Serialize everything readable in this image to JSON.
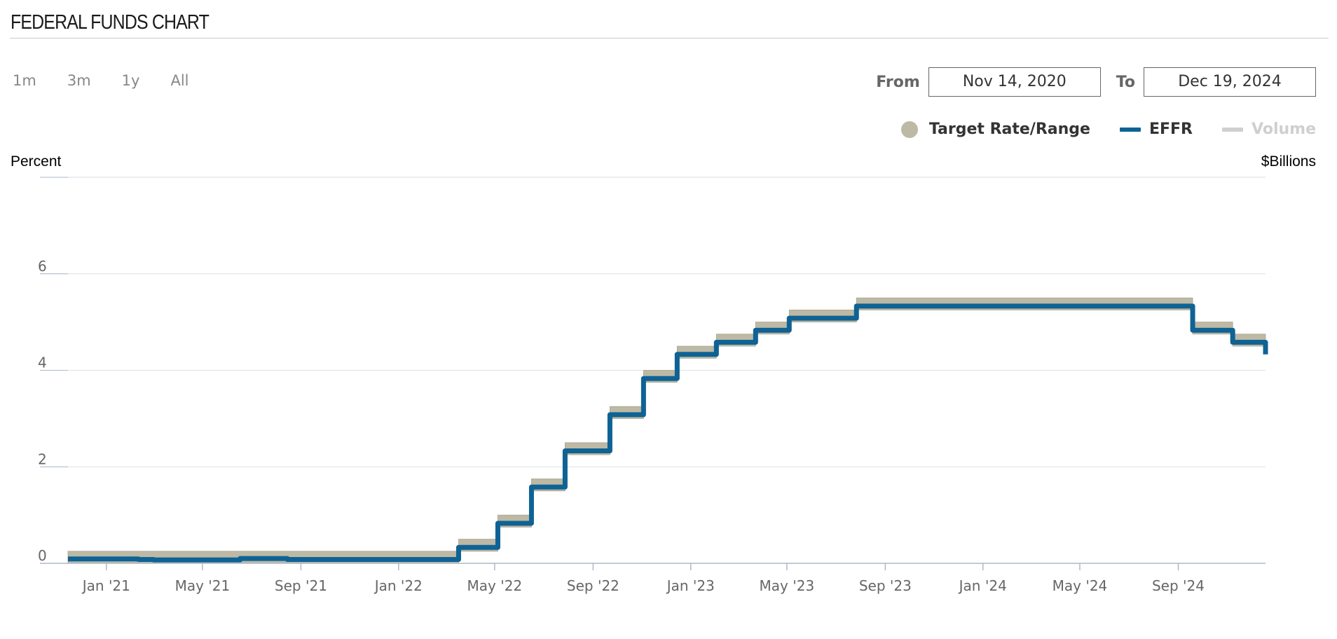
{
  "header": {
    "title": "FEDERAL FUNDS CHART"
  },
  "range_buttons": [
    "1m",
    "3m",
    "1y",
    "All"
  ],
  "date_range": {
    "from_label": "From",
    "from_value": "Nov 14, 2020",
    "to_label": "To",
    "to_value": "Dec 19, 2024"
  },
  "legend": {
    "target": {
      "label": "Target Rate/Range",
      "color": "#bdb9a5"
    },
    "effr": {
      "label": "EFFR",
      "color": "#0f6294"
    },
    "volume": {
      "label": "Volume",
      "color": "#cfcfcf"
    }
  },
  "chart_data": {
    "type": "line",
    "ylabel_left": "Percent",
    "ylabel_right": "$Billions",
    "ylim": [
      0,
      8
    ],
    "y_ticks": [
      0,
      2,
      4,
      6
    ],
    "xlim": [
      "2020-11-14",
      "2024-12-19"
    ],
    "x_ticks": [
      {
        "date": "2021-01-01",
        "label": "Jan '21"
      },
      {
        "date": "2021-05-01",
        "label": "May '21"
      },
      {
        "date": "2021-09-01",
        "label": "Sep '21"
      },
      {
        "date": "2022-01-01",
        "label": "Jan '22"
      },
      {
        "date": "2022-05-01",
        "label": "May '22"
      },
      {
        "date": "2022-09-01",
        "label": "Sep '22"
      },
      {
        "date": "2023-01-01",
        "label": "Jan '23"
      },
      {
        "date": "2023-05-01",
        "label": "May '23"
      },
      {
        "date": "2023-09-01",
        "label": "Sep '23"
      },
      {
        "date": "2024-01-01",
        "label": "Jan '24"
      },
      {
        "date": "2024-05-01",
        "label": "May '24"
      },
      {
        "date": "2024-09-01",
        "label": "Sep '24"
      }
    ],
    "grid": true,
    "legend_position": "top-right",
    "series": [
      {
        "name": "Target Rate/Range",
        "kind": "range-band",
        "color": "#bdb9a5",
        "steps": [
          {
            "start": "2020-11-14",
            "lower": 0.0,
            "upper": 0.25
          },
          {
            "start": "2022-03-17",
            "lower": 0.25,
            "upper": 0.5
          },
          {
            "start": "2022-05-05",
            "lower": 0.75,
            "upper": 1.0
          },
          {
            "start": "2022-06-16",
            "lower": 1.5,
            "upper": 1.75
          },
          {
            "start": "2022-07-28",
            "lower": 2.25,
            "upper": 2.5
          },
          {
            "start": "2022-09-22",
            "lower": 3.0,
            "upper": 3.25
          },
          {
            "start": "2022-11-03",
            "lower": 3.75,
            "upper": 4.0
          },
          {
            "start": "2022-12-15",
            "lower": 4.25,
            "upper": 4.5
          },
          {
            "start": "2023-02-02",
            "lower": 4.5,
            "upper": 4.75
          },
          {
            "start": "2023-03-23",
            "lower": 4.75,
            "upper": 5.0
          },
          {
            "start": "2023-05-04",
            "lower": 5.0,
            "upper": 5.25
          },
          {
            "start": "2023-07-27",
            "lower": 5.25,
            "upper": 5.5
          },
          {
            "start": "2024-09-19",
            "lower": 4.75,
            "upper": 5.0
          },
          {
            "start": "2024-11-08",
            "lower": 4.5,
            "upper": 4.75
          },
          {
            "start": "2024-12-19",
            "lower": 4.25,
            "upper": 4.5
          }
        ]
      },
      {
        "name": "EFFR",
        "kind": "step-line",
        "color": "#0f6294",
        "steps": [
          {
            "start": "2020-11-14",
            "value": 0.09
          },
          {
            "start": "2021-01-01",
            "value": 0.09
          },
          {
            "start": "2021-02-10",
            "value": 0.08
          },
          {
            "start": "2021-03-01",
            "value": 0.07
          },
          {
            "start": "2021-06-17",
            "value": 0.1
          },
          {
            "start": "2021-08-15",
            "value": 0.08
          },
          {
            "start": "2022-01-01",
            "value": 0.08
          },
          {
            "start": "2022-03-17",
            "value": 0.33
          },
          {
            "start": "2022-05-05",
            "value": 0.83
          },
          {
            "start": "2022-06-16",
            "value": 1.58
          },
          {
            "start": "2022-07-28",
            "value": 2.33
          },
          {
            "start": "2022-09-22",
            "value": 3.08
          },
          {
            "start": "2022-11-03",
            "value": 3.83
          },
          {
            "start": "2022-12-15",
            "value": 4.33
          },
          {
            "start": "2023-02-02",
            "value": 4.58
          },
          {
            "start": "2023-03-23",
            "value": 4.83
          },
          {
            "start": "2023-05-04",
            "value": 5.08
          },
          {
            "start": "2023-07-27",
            "value": 5.33
          },
          {
            "start": "2024-09-19",
            "value": 4.83
          },
          {
            "start": "2024-11-08",
            "value": 4.58
          },
          {
            "start": "2024-12-19",
            "value": 4.33
          }
        ]
      },
      {
        "name": "Volume",
        "kind": "line",
        "color": "#cfcfcf",
        "visible": false,
        "values": []
      }
    ]
  }
}
